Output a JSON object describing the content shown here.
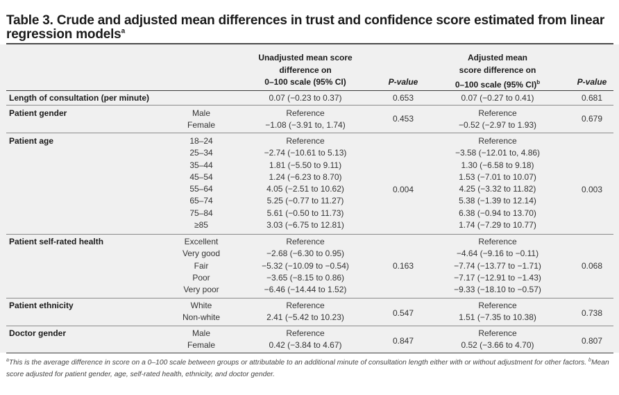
{
  "title": {
    "text": "Table 3. Crude and adjusted mean differences in trust and confidence score estimated from linear regression models",
    "sup": "a"
  },
  "headers": {
    "unadjusted_line1": "Unadjusted mean score",
    "unadjusted_line2": "difference on",
    "unadjusted_line3": "0–100 scale (95% CI)",
    "pvalue1": "P-value",
    "adjusted_line1": "Adjusted mean",
    "adjusted_line2": "score difference on",
    "adjusted_line3": "0–100 scale (95% CI)",
    "adjusted_sup": "b",
    "pvalue2": "P-value"
  },
  "rows": [
    {
      "label": "Length of consultation (per minute)",
      "categories": [
        ""
      ],
      "unadjusted": [
        "0.07 (−0.23 to 0.37)"
      ],
      "p1": "0.653",
      "adjusted": [
        "0.07 (−0.27 to 0.41)"
      ],
      "p2": "0.681"
    },
    {
      "label": "Patient gender",
      "categories": [
        "Male",
        "Female"
      ],
      "unadjusted": [
        "Reference",
        "−1.08 (−3.91 to, 1.74)"
      ],
      "p1": "0.453",
      "adjusted": [
        "Reference",
        "−0.52 (−2.97 to 1.93)"
      ],
      "p2": "0.679"
    },
    {
      "label": "Patient age",
      "categories": [
        "18–24",
        "25–34",
        "35–44",
        "45–54",
        "55–64",
        "65–74",
        "75–84",
        "≥85"
      ],
      "unadjusted": [
        "Reference",
        "−2.74 (−10.61 to 5.13)",
        "1.81 (−5.50 to 9.11)",
        "1.24 (−6.23 to 8.70)",
        "4.05 (−2.51 to 10.62)",
        "5.25 (−0.77 to 11.27)",
        "5.61 (−0.50 to 11.73)",
        "3.03 (−6.75 to 12.81)"
      ],
      "p1": "0.004",
      "adjusted": [
        "Reference",
        "−3.58 (−12.01 to, 4.86)",
        "1.30 (−6.58 to 9.18)",
        "1.53 (−7.01 to 10.07)",
        "4.25 (−3.32 to 11.82)",
        "5.38 (−1.39 to 12.14)",
        "6.38 (−0.94 to 13.70)",
        "1.74 (−7.29 to 10.77)"
      ],
      "p2": "0.003"
    },
    {
      "label": "Patient self-rated health",
      "categories": [
        "Excellent",
        "Very good",
        "Fair",
        "Poor",
        "Very poor"
      ],
      "unadjusted": [
        "Reference",
        "−2.68 (−6.30 to 0.95)",
        "−5.32 (−10.09 to −0.54)",
        "−3.65 (−8.15 to 0.86)",
        "−6.46 (−14.44 to 1.52)"
      ],
      "p1": "0.163",
      "adjusted": [
        "Reference",
        "−4.64 (−9.16 to −0.11)",
        "−7.74 (−13.77 to −1.71)",
        "−7.17 (−12.91 to −1.43)",
        "−9.33 (−18.10 to −0.57)"
      ],
      "p2": "0.068"
    },
    {
      "label": "Patient ethnicity",
      "categories": [
        "White",
        "Non-white"
      ],
      "unadjusted": [
        "Reference",
        "2.41 (−5.42 to 10.23)"
      ],
      "p1": "0.547",
      "adjusted": [
        "Reference",
        "1.51 (−7.35 to 10.38)"
      ],
      "p2": "0.738"
    },
    {
      "label": "Doctor gender",
      "categories": [
        "Male",
        "Female"
      ],
      "unadjusted": [
        "Reference",
        "0.42 (−3.84 to 4.67)"
      ],
      "p1": "0.847",
      "adjusted": [
        "Reference",
        "0.52 (−3.66 to 4.70)"
      ],
      "p2": "0.807"
    }
  ],
  "footnote": {
    "sup_a": "a",
    "text_a": "This is the average difference in score on a 0–100 scale between groups or attributable to an additional minute of consultation length either with or without adjustment for other factors.",
    "sup_b": "b",
    "text_b": "Mean score adjusted for patient gender, age, self-rated health, ethnicity, and doctor gender."
  }
}
